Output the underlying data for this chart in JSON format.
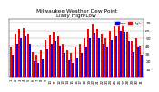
{
  "title": "Milwaukee Weather Dew Point\nDaily High/Low",
  "title_fontsize": 4.2,
  "ylabel_fontsize": 3.2,
  "xlabel_fontsize": 2.8,
  "background_color": "#ffffff",
  "bar_width": 0.42,
  "legend_labels": [
    "High",
    "Low"
  ],
  "high_color": "#ff0000",
  "low_color": "#0000ff",
  "grid_color": "#888888",
  "dates": [
    "1",
    "2",
    "3",
    "4",
    "5",
    "6",
    "7",
    "8",
    "9",
    "10",
    "11",
    "12",
    "13",
    "14",
    "15",
    "16",
    "17",
    "18",
    "19",
    "20",
    "21",
    "22",
    "23",
    "24",
    "25",
    "26",
    "27",
    "28",
    "29",
    "30",
    "31"
  ],
  "high_values": [
    38,
    55,
    62,
    63,
    55,
    32,
    28,
    35,
    48,
    54,
    57,
    52,
    42,
    35,
    30,
    38,
    42,
    50,
    62,
    68,
    62,
    55,
    50,
    60,
    65,
    72,
    70,
    58,
    45,
    50,
    40
  ],
  "low_values": [
    28,
    42,
    50,
    52,
    42,
    20,
    18,
    24,
    36,
    42,
    45,
    40,
    30,
    22,
    18,
    25,
    30,
    38,
    50,
    56,
    50,
    42,
    38,
    48,
    53,
    60,
    58,
    45,
    32,
    38,
    28
  ],
  "ylim": [
    0,
    75
  ],
  "ytick_positions": [
    10,
    20,
    30,
    40,
    50,
    60,
    70
  ],
  "ytick_labels": [
    "10",
    "20",
    "30",
    "40",
    "50",
    "60",
    "70"
  ]
}
